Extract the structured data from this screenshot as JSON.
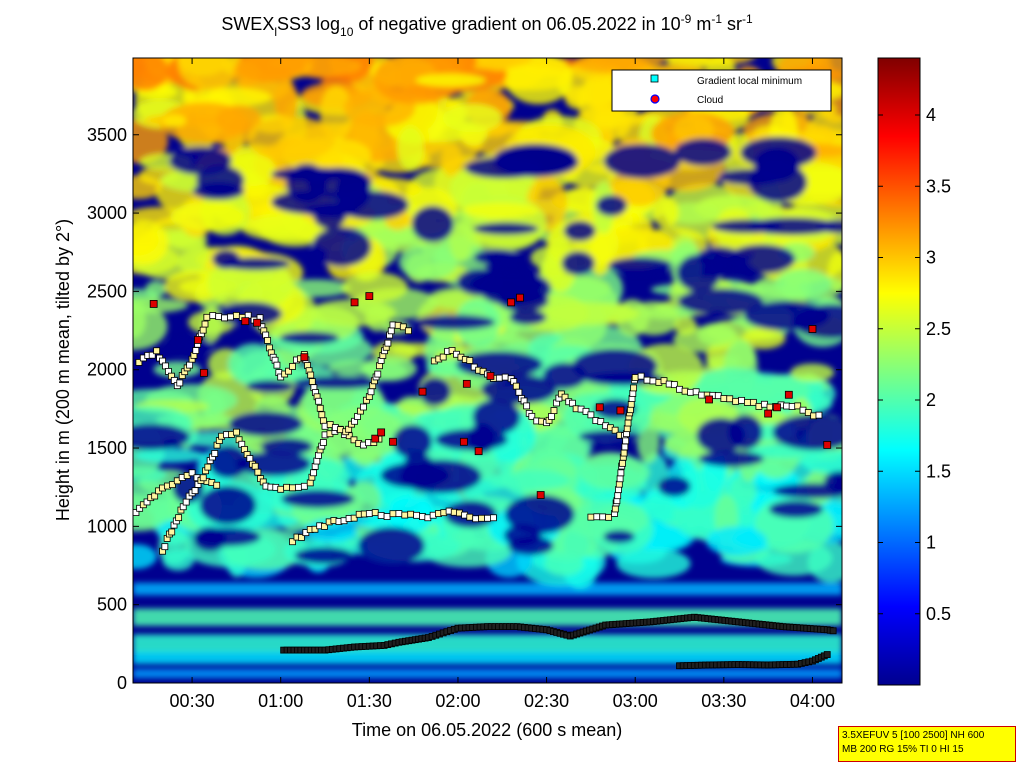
{
  "chart_data": {
    "type": "heatmap",
    "title": {
      "pre": "SWEX",
      "sub1": "l",
      "mid1": "SS3 log",
      "sub2": "10",
      "mid2": " of negative gradient on 06.05.2022 in 10",
      "sup1": "-9",
      "mid3": " m",
      "sup2": "-1",
      "mid4": " sr",
      "sup3": "-1"
    },
    "xlabel": "Time on 06.05.2022 (600 s mean)",
    "ylabel": "Height in m (200 m mean, tilted by 2°)",
    "xlim_minutes": [
      10,
      250
    ],
    "ylim": [
      0,
      3990
    ],
    "x_ticks": [
      {
        "minutes": 30,
        "label": "00:30"
      },
      {
        "minutes": 60,
        "label": "01:00"
      },
      {
        "minutes": 90,
        "label": "01:30"
      },
      {
        "minutes": 120,
        "label": "02:00"
      },
      {
        "minutes": 150,
        "label": "02:30"
      },
      {
        "minutes": 180,
        "label": "03:00"
      },
      {
        "minutes": 210,
        "label": "03:30"
      },
      {
        "minutes": 240,
        "label": "04:00"
      }
    ],
    "y_ticks": [
      0,
      500,
      1000,
      1500,
      2000,
      2500,
      3000,
      3500
    ],
    "colorbar": {
      "range": [
        0,
        4.4
      ],
      "ticks": [
        {
          "value": 0.5,
          "label": "0.5"
        },
        {
          "value": 1,
          "label": "1"
        },
        {
          "value": 1.5,
          "label": "1.5"
        },
        {
          "value": 2,
          "label": "2"
        },
        {
          "value": 2.5,
          "label": "2.5"
        },
        {
          "value": 3,
          "label": "3"
        },
        {
          "value": 3.5,
          "label": "3.5"
        },
        {
          "value": 4,
          "label": "4"
        }
      ]
    },
    "legend": {
      "position": "top-right",
      "entries": [
        {
          "label": "Gradient local minimum",
          "marker": "square",
          "color": "#00ffff"
        },
        {
          "label": "Cloud",
          "marker": "circle",
          "color": "#ff0000",
          "edge": "#0000ff"
        }
      ]
    },
    "series": [
      {
        "name": "Gradient local minimum",
        "bands": [
          {
            "t": [
              61,
              75,
              85,
              95,
              100,
              110,
              115,
              120,
              130,
              140,
              150,
              158,
              170,
              185,
              200,
              215,
              230,
              245,
              248
            ],
            "h": [
              210,
              210,
              230,
              240,
              260,
              290,
              320,
              350,
              360,
              360,
              340,
              300,
              370,
              390,
              420,
              390,
              360,
              340,
              330
            ]
          },
          {
            "t": [
              195,
              205,
              215,
              225,
              235,
              240,
              246
            ],
            "h": [
              110,
              115,
              118,
              115,
              120,
              140,
              190
            ]
          },
          {
            "t": [
              11,
              16,
              20,
              25,
              30,
              35,
              40
            ],
            "h": [
              1100,
              1180,
              1250,
              1290,
              1330,
              1280,
              1250
            ]
          },
          {
            "t": [
              64,
              70,
              78,
              90,
              100,
              108,
              117,
              124,
              130,
              134
            ],
            "h": [
              900,
              980,
              1030,
              1080,
              1070,
              1060,
              1090,
              1060,
              1040,
              1070
            ]
          },
          {
            "t": [
              20,
              27,
              33,
              40,
              45,
              55,
              60,
              70,
              75,
              80,
              88,
              95
            ],
            "h": [
              850,
              1130,
              1290,
              1570,
              1590,
              1250,
              1230,
              1270,
              1580,
              1620,
              1510,
              1580
            ]
          },
          {
            "t": [
              12,
              18,
              25,
              30,
              35,
              45,
              53,
              60,
              68,
              75,
              82,
              90,
              98,
              105
            ],
            "h": [
              2050,
              2110,
              1890,
              2070,
              2330,
              2350,
              2320,
              1950,
              2100,
              1650,
              1600,
              1820,
              2280,
              2250
            ]
          },
          {
            "t": [
              112,
              118,
              124,
              130,
              138,
              145,
              150,
              155,
              160,
              170,
              178
            ],
            "h": [
              2060,
              2120,
              2050,
              1960,
              1950,
              1700,
              1650,
              1840,
              1760,
              1650,
              1550
            ]
          },
          {
            "t": [
              165,
              173,
              180,
              188,
              195,
              210,
              220,
              235,
              244
            ],
            "h": [
              1060,
              1070,
              1960,
              1930,
              1880,
              1820,
              1780,
              1760,
              1690
            ]
          }
        ]
      },
      {
        "name": "Cloud",
        "points": [
          {
            "t": 17,
            "h": 2420
          },
          {
            "t": 32,
            "h": 2190
          },
          {
            "t": 34,
            "h": 1980
          },
          {
            "t": 48,
            "h": 2310
          },
          {
            "t": 52,
            "h": 2300
          },
          {
            "t": 68,
            "h": 2080
          },
          {
            "t": 85,
            "h": 2430
          },
          {
            "t": 90,
            "h": 2470
          },
          {
            "t": 92,
            "h": 1560
          },
          {
            "t": 94,
            "h": 1600
          },
          {
            "t": 98,
            "h": 1540
          },
          {
            "t": 108,
            "h": 1860
          },
          {
            "t": 122,
            "h": 1540
          },
          {
            "t": 123,
            "h": 1910
          },
          {
            "t": 127,
            "h": 1480
          },
          {
            "t": 131,
            "h": 1960
          },
          {
            "t": 138,
            "h": 2430
          },
          {
            "t": 141,
            "h": 2460
          },
          {
            "t": 148,
            "h": 1200
          },
          {
            "t": 168,
            "h": 1760
          },
          {
            "t": 175,
            "h": 1740
          },
          {
            "t": 205,
            "h": 1810
          },
          {
            "t": 225,
            "h": 1720
          },
          {
            "t": 228,
            "h": 1760
          },
          {
            "t": 232,
            "h": 1840
          },
          {
            "t": 240,
            "h": 2260
          },
          {
            "t": 245,
            "h": 1520
          }
        ]
      }
    ],
    "parameters": [
      "3.5XEFUV 5 [100 2500] NH 600",
      "MB 200 RG 15% TI 0 HI 15"
    ]
  }
}
